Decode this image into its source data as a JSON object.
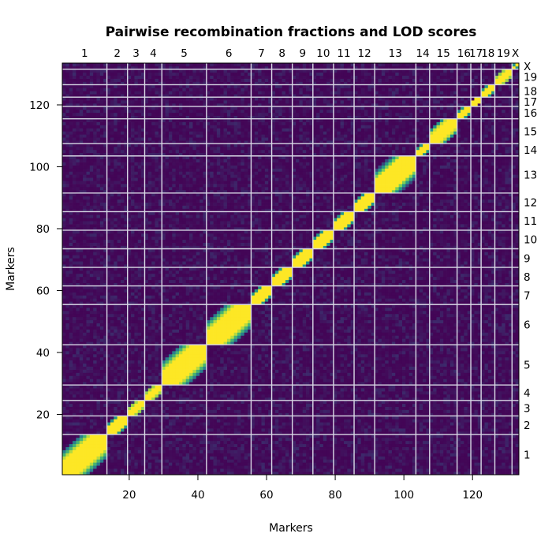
{
  "chart_data": {
    "type": "heatmap",
    "title": "Pairwise recombination fractions and LOD scores",
    "xlabel": "Markers",
    "ylabel": "Markers",
    "n_markers": 133,
    "xlim": [
      0.5,
      133.5
    ],
    "ylim": [
      0.5,
      133.5
    ],
    "x_ticks": [
      20,
      40,
      60,
      80,
      100,
      120
    ],
    "y_ticks": [
      20,
      40,
      60,
      80,
      100,
      120
    ],
    "chromosomes": [
      {
        "name": "1",
        "start": 1,
        "end": 13
      },
      {
        "name": "2",
        "start": 14,
        "end": 19
      },
      {
        "name": "3",
        "start": 20,
        "end": 24
      },
      {
        "name": "4",
        "start": 25,
        "end": 29
      },
      {
        "name": "5",
        "start": 30,
        "end": 42
      },
      {
        "name": "6",
        "start": 43,
        "end": 55
      },
      {
        "name": "7",
        "start": 56,
        "end": 61
      },
      {
        "name": "8",
        "start": 62,
        "end": 67
      },
      {
        "name": "9",
        "start": 68,
        "end": 73
      },
      {
        "name": "10",
        "start": 74,
        "end": 79
      },
      {
        "name": "11",
        "start": 80,
        "end": 85
      },
      {
        "name": "12",
        "start": 86,
        "end": 91
      },
      {
        "name": "13",
        "start": 92,
        "end": 103
      },
      {
        "name": "14",
        "start": 104,
        "end": 107
      },
      {
        "name": "15",
        "start": 108,
        "end": 115
      },
      {
        "name": "16",
        "start": 116,
        "end": 119
      },
      {
        "name": "17",
        "start": 120,
        "end": 122
      },
      {
        "name": "18",
        "start": 123,
        "end": 126
      },
      {
        "name": "19",
        "start": 127,
        "end": 131
      },
      {
        "name": "X",
        "start": 132,
        "end": 133
      }
    ],
    "color_scale": {
      "low": "#440154",
      "mid_low": "#31688e",
      "mid": "#21918c",
      "mid_high": "#5ec962",
      "high": "#fde725"
    },
    "grid_color": "#d9d9e6",
    "grid": true
  }
}
